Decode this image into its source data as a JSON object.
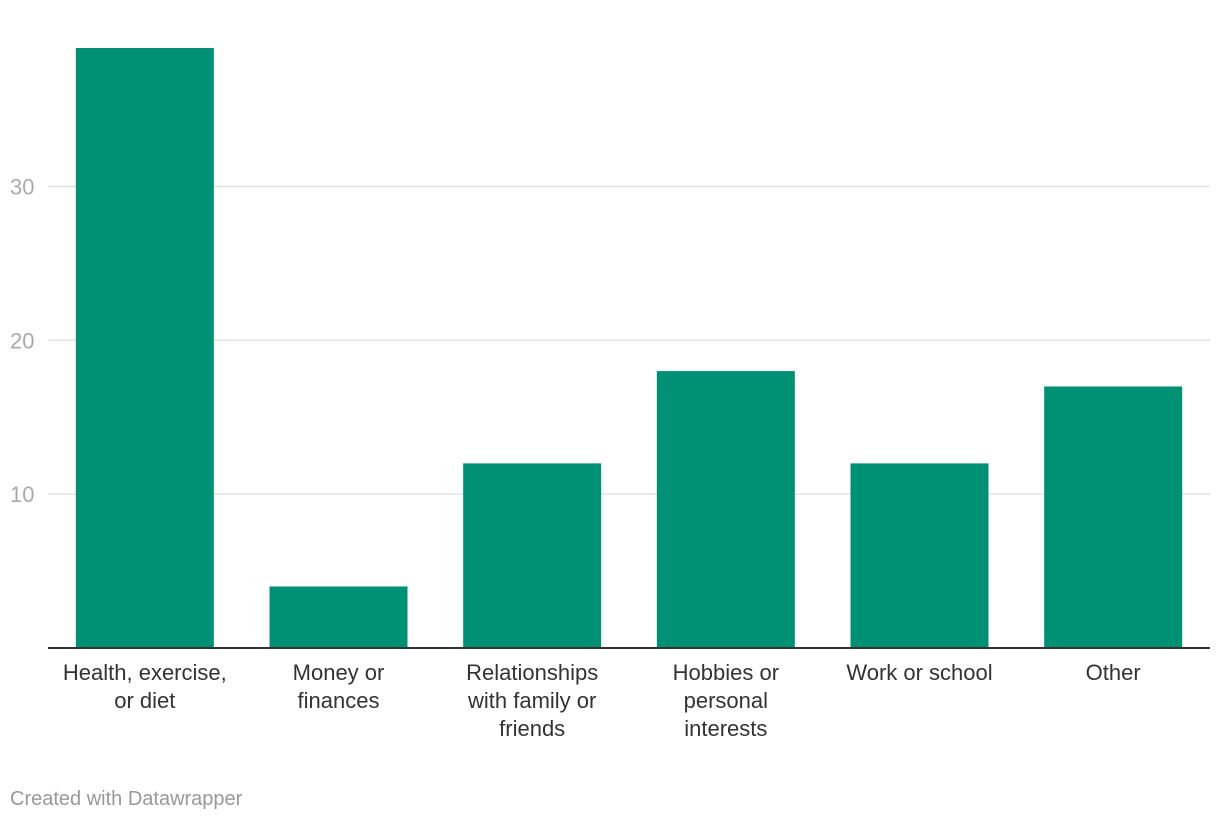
{
  "chart_data": {
    "type": "bar",
    "title": "",
    "xlabel": "",
    "ylabel": "",
    "categories": [
      [
        "Health, exercise,",
        "or diet"
      ],
      [
        "Money or",
        "finances"
      ],
      [
        "Relationships",
        "with family or",
        "friends"
      ],
      [
        "Hobbies or",
        "personal",
        "interests"
      ],
      [
        "Work or school"
      ],
      [
        "Other"
      ]
    ],
    "values": [
      39,
      4,
      12,
      18,
      12,
      17
    ],
    "ylim": [
      0,
      39
    ],
    "yticks": [
      10,
      20,
      30
    ],
    "grid": true,
    "legend": "none"
  },
  "colors": {
    "bar": "#009175",
    "grid": "#e2e2e2",
    "axis": "#333333"
  },
  "footer": {
    "credit": "Created with Datawrapper"
  }
}
